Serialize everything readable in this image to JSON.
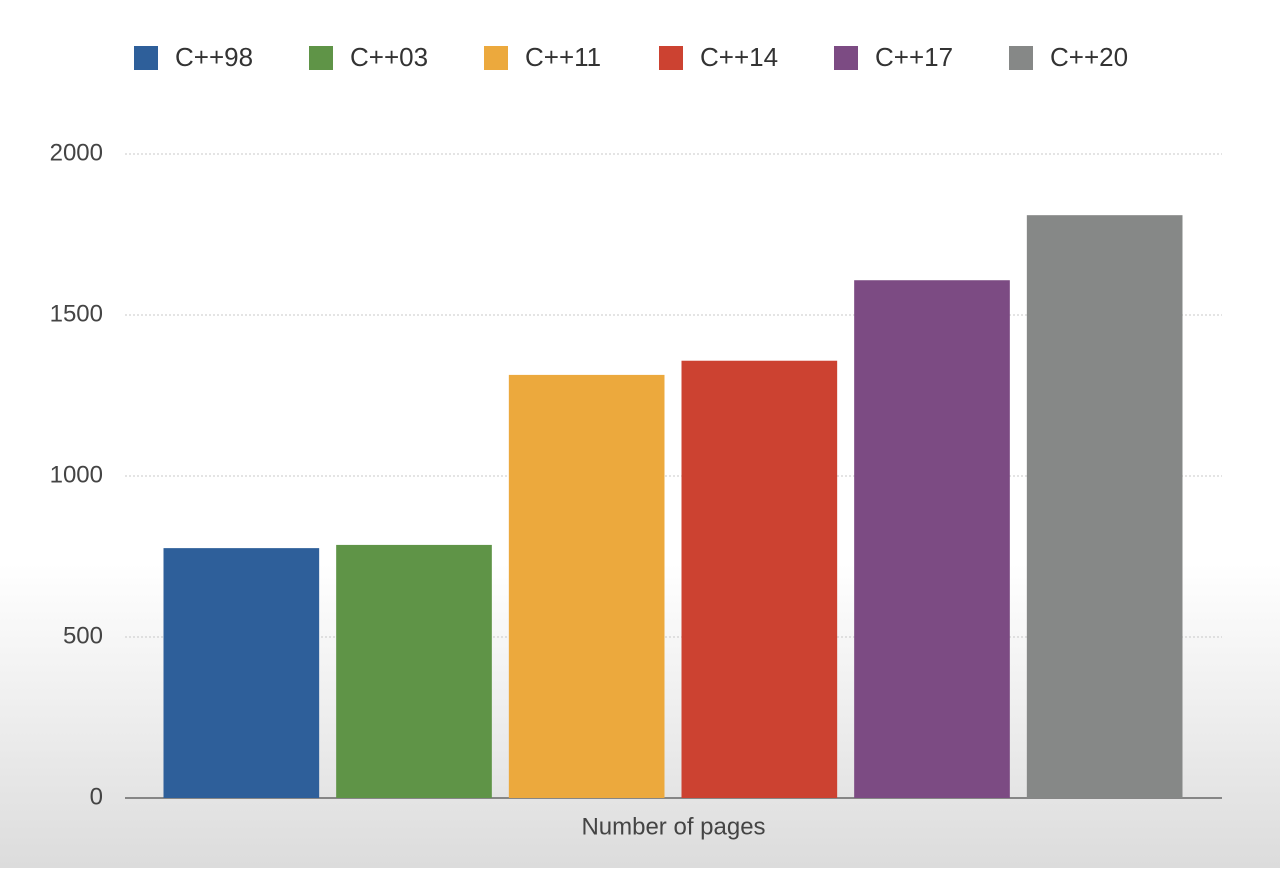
{
  "chart_data": {
    "type": "bar",
    "categories": [
      "Number of pages"
    ],
    "series": [
      {
        "name": "C++98",
        "color": "#2e5f9a",
        "values": [
          776
        ]
      },
      {
        "name": "C++03",
        "color": "#5f9447",
        "values": [
          786
        ]
      },
      {
        "name": "C++11",
        "color": "#eca93d",
        "values": [
          1314
        ]
      },
      {
        "name": "C++14",
        "color": "#cc4231",
        "values": [
          1358
        ]
      },
      {
        "name": "C++17",
        "color": "#7c4b83",
        "values": [
          1608
        ]
      },
      {
        "name": "C++20",
        "color": "#868887",
        "values": [
          1810
        ]
      }
    ],
    "ylim": [
      0,
      2000
    ],
    "yticks": [
      0,
      500,
      1000,
      1500,
      2000
    ],
    "grid": true,
    "legend": "top"
  }
}
